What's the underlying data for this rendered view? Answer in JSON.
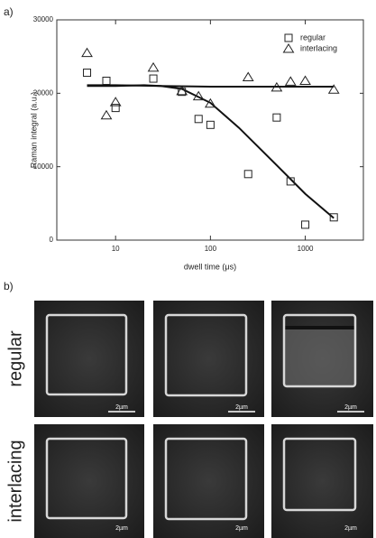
{
  "panel_labels": [
    "a)",
    "b)"
  ],
  "chart_data": {
    "type": "scatter",
    "x_label": "dwell time (μs)",
    "y_label": "Raman integral (a.u.)",
    "xscale": "log",
    "xlim": [
      2.4,
      4100
    ],
    "xticks": [
      10,
      100,
      1000
    ],
    "ylim": [
      0,
      30000
    ],
    "yticks": [
      0,
      10000,
      20000,
      30000
    ],
    "legend": "upper right",
    "series": [
      {
        "name": "regular",
        "marker": "square",
        "color": "#222222",
        "x": [
          5,
          8,
          10,
          25,
          50,
          75,
          100,
          250,
          500,
          700,
          1000,
          2000
        ],
        "values": [
          22800,
          21700,
          18000,
          22000,
          20200,
          16500,
          15700,
          9000,
          16700,
          8000,
          2100,
          3100
        ]
      },
      {
        "name": "interlacing",
        "marker": "triangle",
        "color": "#222222",
        "x": [
          5,
          8,
          10,
          25,
          50,
          75,
          100,
          250,
          500,
          700,
          1000,
          2000
        ],
        "values": [
          25500,
          17000,
          18800,
          23500,
          20300,
          19600,
          18600,
          22200,
          20800,
          21600,
          21700,
          20500
        ]
      }
    ],
    "fit_lines": [
      {
        "x": [
          5,
          10,
          20,
          30,
          50,
          100,
          200,
          500,
          1000,
          2000
        ],
        "values": [
          21000,
          21000,
          21100,
          21000,
          20600,
          18700,
          15300,
          10200,
          6300,
          3000
        ]
      },
      {
        "x": [
          5,
          10,
          30,
          100,
          300,
          1000,
          2000
        ],
        "values": [
          21100,
          21100,
          21000,
          20900,
          20900,
          20900,
          20900
        ]
      }
    ]
  },
  "micrographs": {
    "rows": [
      {
        "label": "regular",
        "scale_bars": [
          "2µm",
          "2µm",
          "2µm"
        ]
      },
      {
        "label": "interlacing",
        "scale_bars": [
          "2µm",
          "2µm",
          "2µm"
        ]
      }
    ]
  }
}
